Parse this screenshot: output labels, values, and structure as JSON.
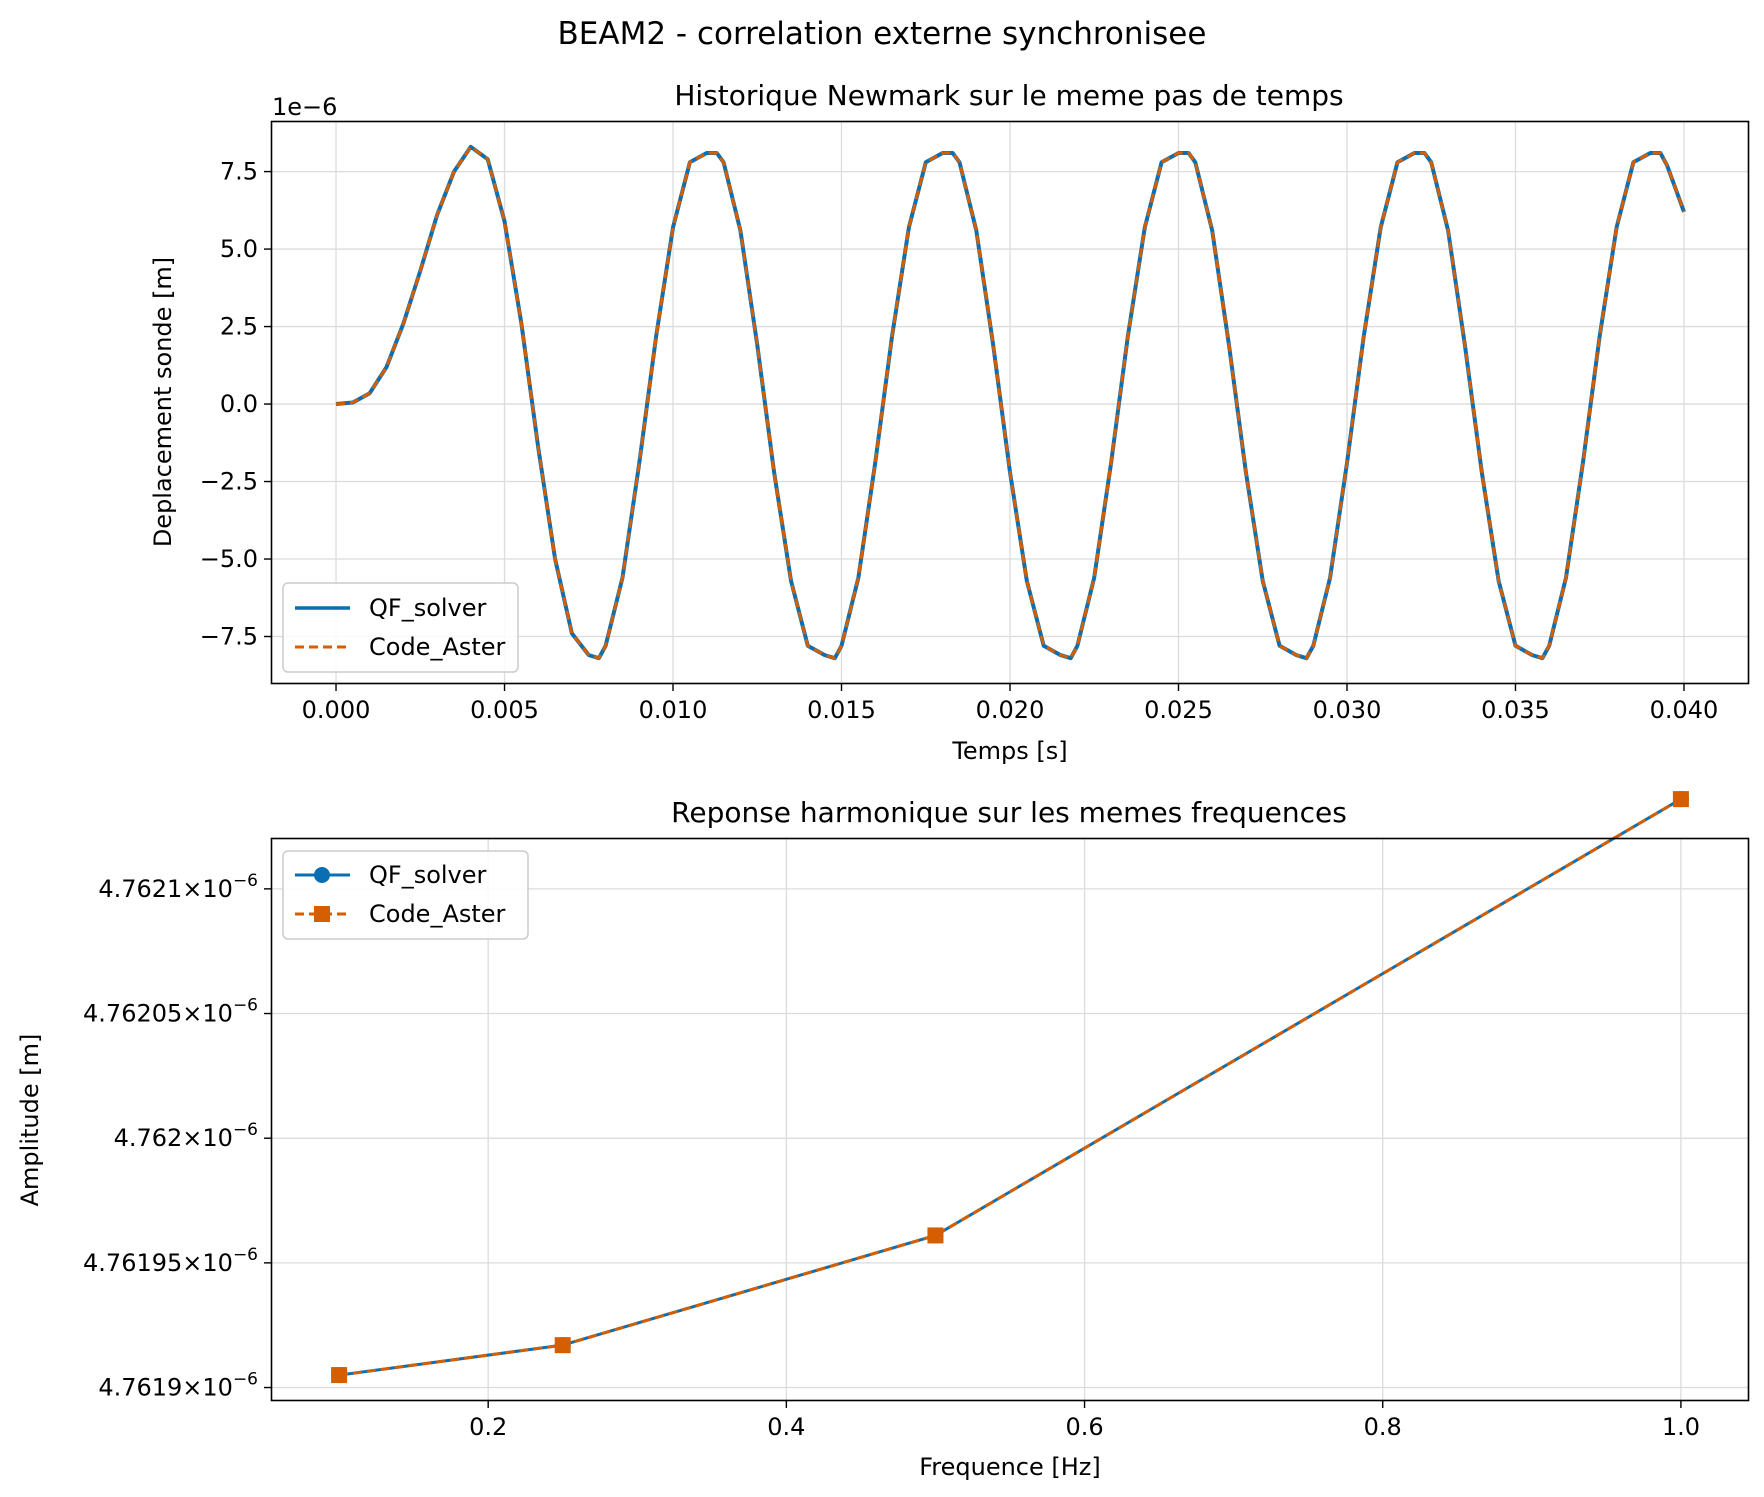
{
  "suptitle": "BEAM2 - correlation externe synchronisee",
  "colors": {
    "qf_solver": "#0a6fb2",
    "code_aster": "#d55e00",
    "grid": "#dcdcdc"
  },
  "chart_data": [
    {
      "type": "line",
      "title": "Historique Newmark sur le meme pas de temps",
      "xlabel": "Temps [s]",
      "ylabel": "Deplacement sonde [m]",
      "y_offset_label": "1e−6",
      "xlim": [
        -0.0019,
        0.0419
      ],
      "ylim": [
        -9e-06,
        9.1e-06
      ],
      "xticks": [
        0.0,
        0.005,
        0.01,
        0.015,
        0.02,
        0.025,
        0.03,
        0.035,
        0.04
      ],
      "xtick_labels": [
        "0.000",
        "0.005",
        "0.010",
        "0.015",
        "0.020",
        "0.025",
        "0.030",
        "0.035",
        "0.040"
      ],
      "yticks": [
        -7.5e-06,
        -5e-06,
        -2.5e-06,
        0,
        2.5e-06,
        5e-06,
        7.5e-06
      ],
      "ytick_labels": [
        "−7.5",
        "−5.0",
        "−2.5",
        "0.0",
        "2.5",
        "5.0",
        "7.5"
      ],
      "grid": true,
      "legend_position": "lower-left",
      "series": [
        {
          "name": "QF_solver",
          "style": "solid",
          "x": [
            0,
            0.0005,
            0.001,
            0.0015,
            0.002,
            0.0025,
            0.003,
            0.0035,
            0.004,
            0.0045,
            0.005,
            0.0055,
            0.006,
            0.0065,
            0.007,
            0.0075,
            0.0078,
            0.008,
            0.0085,
            0.009,
            0.0095,
            0.01,
            0.0105,
            0.011,
            0.0113,
            0.0115,
            0.012,
            0.0125,
            0.013,
            0.0135,
            0.014,
            0.0145,
            0.0148,
            0.015,
            0.0155,
            0.016,
            0.0165,
            0.017,
            0.0175,
            0.018,
            0.0183,
            0.0185,
            0.019,
            0.0195,
            0.02,
            0.0205,
            0.021,
            0.0215,
            0.0218,
            0.022,
            0.0225,
            0.023,
            0.0235,
            0.024,
            0.0245,
            0.025,
            0.0253,
            0.0255,
            0.026,
            0.0265,
            0.027,
            0.0275,
            0.028,
            0.0285,
            0.0288,
            0.029,
            0.0295,
            0.03,
            0.0305,
            0.031,
            0.0315,
            0.032,
            0.0323,
            0.0325,
            0.033,
            0.0335,
            0.034,
            0.0345,
            0.035,
            0.0355,
            0.0358,
            0.036,
            0.0365,
            0.037,
            0.0375,
            0.038,
            0.0385,
            0.039,
            0.0393,
            0.0395,
            0.04
          ],
          "y": [
            0,
            5e-08,
            3.5e-07,
            1.2e-06,
            2.6e-06,
            4.3e-06,
            6.1e-06,
            7.5e-06,
            8.3e-06,
            7.9e-06,
            5.9e-06,
            2.6e-06,
            -1.4e-06,
            -5e-06,
            -7.4e-06,
            -8.1e-06,
            -8.2e-06,
            -7.8e-06,
            -5.6e-06,
            -1.9e-06,
            2.2e-06,
            5.7e-06,
            7.8e-06,
            8.1e-06,
            8.1e-06,
            7.8e-06,
            5.6e-06,
            1.9e-06,
            -2.2e-06,
            -5.7e-06,
            -7.8e-06,
            -8.1e-06,
            -8.2e-06,
            -7.8e-06,
            -5.6e-06,
            -1.9e-06,
            2.2e-06,
            5.7e-06,
            7.8e-06,
            8.1e-06,
            8.1e-06,
            7.8e-06,
            5.6e-06,
            1.9e-06,
            -2.2e-06,
            -5.7e-06,
            -7.8e-06,
            -8.1e-06,
            -8.2e-06,
            -7.8e-06,
            -5.6e-06,
            -1.9e-06,
            2.2e-06,
            5.7e-06,
            7.8e-06,
            8.1e-06,
            8.1e-06,
            7.8e-06,
            5.6e-06,
            1.9e-06,
            -2.2e-06,
            -5.7e-06,
            -7.8e-06,
            -8.1e-06,
            -8.2e-06,
            -7.8e-06,
            -5.6e-06,
            -1.9e-06,
            2.2e-06,
            5.7e-06,
            7.8e-06,
            8.1e-06,
            8.1e-06,
            7.8e-06,
            5.6e-06,
            1.9e-06,
            -2.2e-06,
            -5.7e-06,
            -7.8e-06,
            -8.1e-06,
            -8.2e-06,
            -7.8e-06,
            -5.6e-06,
            -1.9e-06,
            2.2e-06,
            5.7e-06,
            7.8e-06,
            8.1e-06,
            8.1e-06,
            7.7e-06,
            6.2e-06
          ]
        },
        {
          "name": "Code_Aster",
          "style": "dashed",
          "x": [
            0,
            0.0005,
            0.001,
            0.0015,
            0.002,
            0.0025,
            0.003,
            0.0035,
            0.004,
            0.0045,
            0.005,
            0.0055,
            0.006,
            0.0065,
            0.007,
            0.0075,
            0.0078,
            0.008,
            0.0085,
            0.009,
            0.0095,
            0.01,
            0.0105,
            0.011,
            0.0113,
            0.0115,
            0.012,
            0.0125,
            0.013,
            0.0135,
            0.014,
            0.0145,
            0.0148,
            0.015,
            0.0155,
            0.016,
            0.0165,
            0.017,
            0.0175,
            0.018,
            0.0183,
            0.0185,
            0.019,
            0.0195,
            0.02,
            0.0205,
            0.021,
            0.0215,
            0.0218,
            0.022,
            0.0225,
            0.023,
            0.0235,
            0.024,
            0.0245,
            0.025,
            0.0253,
            0.0255,
            0.026,
            0.0265,
            0.027,
            0.0275,
            0.028,
            0.0285,
            0.0288,
            0.029,
            0.0295,
            0.03,
            0.0305,
            0.031,
            0.0315,
            0.032,
            0.0323,
            0.0325,
            0.033,
            0.0335,
            0.034,
            0.0345,
            0.035,
            0.0355,
            0.0358,
            0.036,
            0.0365,
            0.037,
            0.0375,
            0.038,
            0.0385,
            0.039,
            0.0393,
            0.0395,
            0.04
          ],
          "y": [
            0,
            5e-08,
            3.5e-07,
            1.2e-06,
            2.6e-06,
            4.3e-06,
            6.1e-06,
            7.5e-06,
            8.3e-06,
            7.9e-06,
            5.9e-06,
            2.6e-06,
            -1.4e-06,
            -5e-06,
            -7.4e-06,
            -8.1e-06,
            -8.2e-06,
            -7.8e-06,
            -5.6e-06,
            -1.9e-06,
            2.2e-06,
            5.7e-06,
            7.8e-06,
            8.1e-06,
            8.1e-06,
            7.8e-06,
            5.6e-06,
            1.9e-06,
            -2.2e-06,
            -5.7e-06,
            -7.8e-06,
            -8.1e-06,
            -8.2e-06,
            -7.8e-06,
            -5.6e-06,
            -1.9e-06,
            2.2e-06,
            5.7e-06,
            7.8e-06,
            8.1e-06,
            8.1e-06,
            7.8e-06,
            5.6e-06,
            1.9e-06,
            -2.2e-06,
            -5.7e-06,
            -7.8e-06,
            -8.1e-06,
            -8.2e-06,
            -7.8e-06,
            -5.6e-06,
            -1.9e-06,
            2.2e-06,
            5.7e-06,
            7.8e-06,
            8.1e-06,
            8.1e-06,
            7.8e-06,
            5.6e-06,
            1.9e-06,
            -2.2e-06,
            -5.7e-06,
            -7.8e-06,
            -8.1e-06,
            -8.2e-06,
            -7.8e-06,
            -5.6e-06,
            -1.9e-06,
            2.2e-06,
            5.7e-06,
            7.8e-06,
            8.1e-06,
            8.1e-06,
            7.8e-06,
            5.6e-06,
            1.9e-06,
            -2.2e-06,
            -5.7e-06,
            -7.8e-06,
            -8.1e-06,
            -8.2e-06,
            -7.8e-06,
            -5.6e-06,
            -1.9e-06,
            2.2e-06,
            5.7e-06,
            7.8e-06,
            8.1e-06,
            8.1e-06,
            7.7e-06,
            6.2e-06
          ]
        }
      ]
    },
    {
      "type": "line",
      "title": "Reponse harmonique sur les memes frequences",
      "xlabel": "Frequence [Hz]",
      "ylabel": "Amplitude [m]",
      "xlim": [
        0.055,
        1.045
      ],
      "ylim": [
        4.761895e-06,
        4.76212e-06
      ],
      "xticks": [
        0.2,
        0.4,
        0.6,
        0.8,
        1.0
      ],
      "xtick_labels": [
        "0.2",
        "0.4",
        "0.6",
        "0.8",
        "1.0"
      ],
      "yticks": [
        4.7619e-06,
        4.76195e-06,
        4.762e-06,
        4.76205e-06,
        4.7621e-06
      ],
      "ytick_mantissas": [
        "4.7619",
        "4.76195",
        "4.762",
        "4.76205",
        "4.7621"
      ],
      "ytick_times": "×",
      "ytick_base": "10",
      "ytick_exponent": "−6",
      "y_scale": "log",
      "grid": true,
      "legend_position": "upper-left",
      "series": [
        {
          "name": "QF_solver",
          "marker": "circle",
          "style": "solid",
          "x": [
            0.1,
            0.25,
            0.5,
            1.0
          ],
          "y": [
            4.761905e-06,
            4.761917e-06,
            4.761961e-06,
            4.762136e-06
          ]
        },
        {
          "name": "Code_Aster",
          "marker": "square",
          "style": "dashed",
          "x": [
            0.1,
            0.25,
            0.5,
            1.0
          ],
          "y": [
            4.761905e-06,
            4.761917e-06,
            4.761961e-06,
            4.762136e-06
          ]
        }
      ]
    }
  ]
}
